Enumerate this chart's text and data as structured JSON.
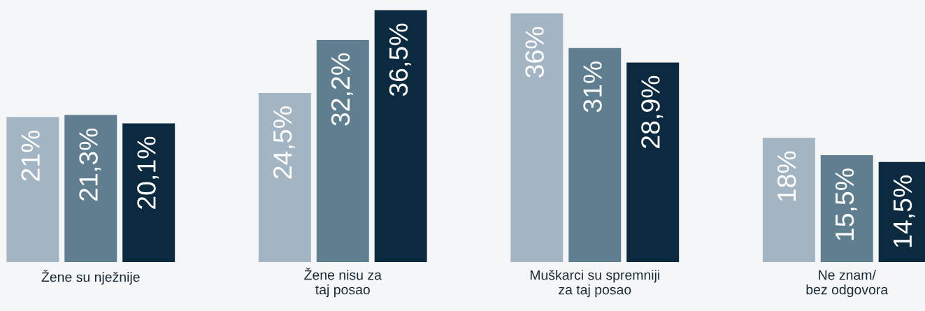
{
  "chart_data": {
    "type": "bar",
    "categories": [
      "Žene su nježnije",
      "Žene nisu za\ntaj posao",
      "Muškarci su spremniji\nza taj posao",
      "Ne znam/\nbez odgovora"
    ],
    "series": [
      {
        "color": "#a3b5c3",
        "values": [
          21,
          24.5,
          36,
          18
        ],
        "value_labels": [
          "21%",
          "24,5%",
          "36%",
          "18%"
        ]
      },
      {
        "color": "#5f7f91",
        "values": [
          21.3,
          32.2,
          31,
          15.5
        ],
        "value_labels": [
          "21,3%",
          "32,2%",
          "31%",
          "15,5%"
        ]
      },
      {
        "color": "#0b2a3f",
        "values": [
          20.1,
          36.5,
          28.9,
          14.5
        ],
        "value_labels": [
          "20,1%",
          "36,5%",
          "28,9%",
          "14,5%"
        ]
      }
    ],
    "legend": false,
    "grid": false,
    "tick_labels": "x"
  }
}
